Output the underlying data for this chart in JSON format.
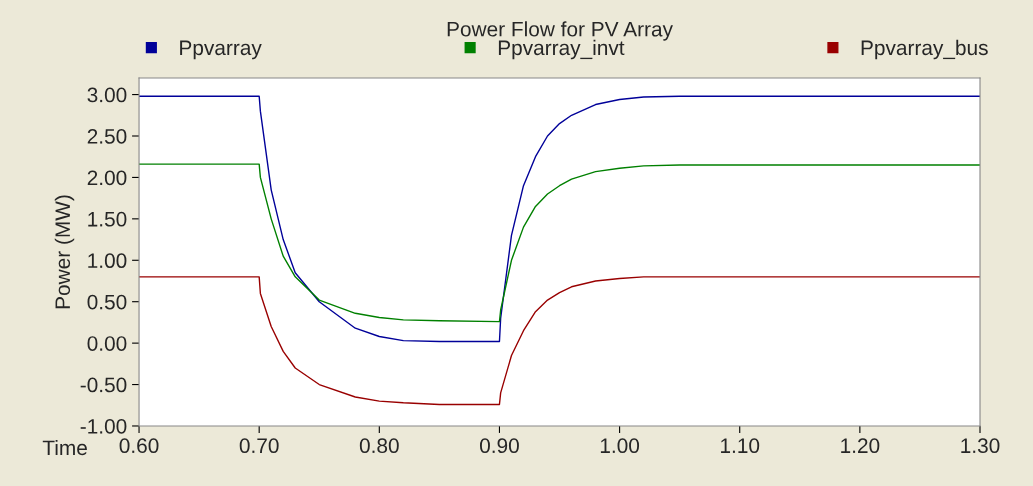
{
  "chart_data": {
    "type": "line",
    "title": "Power Flow for PV Array",
    "xlabel": "Time",
    "ylabel": "Power (MW)",
    "xlim": [
      0.6,
      1.3
    ],
    "xticks": [
      {
        "value": 0.6,
        "label": "0.60"
      },
      {
        "value": 0.7,
        "label": "0.70"
      },
      {
        "value": 0.8,
        "label": "0.80"
      },
      {
        "value": 0.9,
        "label": "0.90"
      },
      {
        "value": 1.0,
        "label": "1.00"
      },
      {
        "value": 1.1,
        "label": "1.10"
      },
      {
        "value": 1.2,
        "label": "1.20"
      },
      {
        "value": 1.3,
        "label": "1.30"
      }
    ],
    "ylim": [
      -1.0,
      3.2
    ],
    "yticks": [
      {
        "value": -1.0,
        "label": "-1.00"
      },
      {
        "value": -0.5,
        "label": "-0.50"
      },
      {
        "value": 0.0,
        "label": "0.00"
      },
      {
        "value": 0.5,
        "label": "0.50"
      },
      {
        "value": 1.0,
        "label": "1.00"
      },
      {
        "value": 1.5,
        "label": "1.50"
      },
      {
        "value": 2.0,
        "label": "2.00"
      },
      {
        "value": 2.5,
        "label": "2.50"
      },
      {
        "value": 3.0,
        "label": "3.00"
      }
    ],
    "grid": false,
    "legend": "top",
    "marker": "none",
    "line_style": "solid",
    "x": [
      0.6,
      0.7,
      0.701,
      0.71,
      0.72,
      0.73,
      0.75,
      0.78,
      0.8,
      0.82,
      0.85,
      0.9,
      0.901,
      0.91,
      0.92,
      0.93,
      0.94,
      0.95,
      0.96,
      0.98,
      1.0,
      1.02,
      1.05,
      1.1,
      1.3
    ],
    "series": [
      {
        "name": "Ppvarray",
        "color": "#000099",
        "values": [
          2.98,
          2.98,
          2.8,
          1.85,
          1.25,
          0.85,
          0.5,
          0.18,
          0.08,
          0.03,
          0.02,
          0.02,
          0.3,
          1.3,
          1.9,
          2.25,
          2.5,
          2.65,
          2.75,
          2.88,
          2.94,
          2.97,
          2.98,
          2.98,
          2.98
        ]
      },
      {
        "name": "Ppvarray_invt",
        "color": "#008000",
        "values": [
          2.16,
          2.16,
          2.0,
          1.5,
          1.05,
          0.8,
          0.52,
          0.36,
          0.31,
          0.28,
          0.27,
          0.26,
          0.4,
          1.0,
          1.4,
          1.65,
          1.8,
          1.9,
          1.98,
          2.07,
          2.11,
          2.14,
          2.15,
          2.15,
          2.15
        ]
      },
      {
        "name": "Ppvarray_bus",
        "color": "#990000",
        "values": [
          0.8,
          0.8,
          0.6,
          0.2,
          -0.1,
          -0.3,
          -0.5,
          -0.65,
          -0.7,
          -0.72,
          -0.74,
          -0.74,
          -0.6,
          -0.15,
          0.15,
          0.38,
          0.52,
          0.61,
          0.68,
          0.75,
          0.78,
          0.8,
          0.8,
          0.8,
          0.8
        ]
      }
    ]
  }
}
